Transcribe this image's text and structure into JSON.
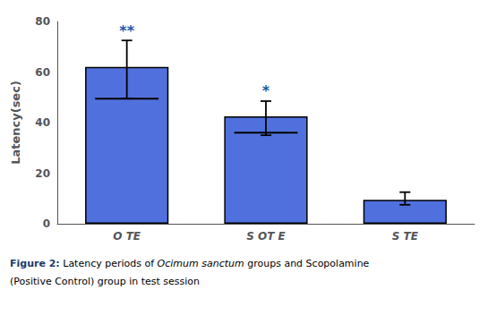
{
  "chart_data": {
    "type": "bar",
    "categories": [
      "O TE",
      "S OT E",
      "S TE"
    ],
    "values": [
      62.0,
      42.5,
      9.5
    ],
    "errors_upper": [
      10.5,
      6.0,
      3.0
    ],
    "errors_lower": [
      12.5,
      7.5,
      2.0
    ],
    "median_lines": [
      49.5,
      36.0,
      null
    ],
    "significance": [
      "**",
      "*",
      null
    ],
    "ylabel": "Latency(sec)",
    "ylim": [
      0,
      80
    ],
    "yticks": [
      0,
      20,
      40,
      60,
      80
    ],
    "grid": false,
    "caption": [
      "Figure 2:",
      " Latency periods of ",
      "Ocimum sanctum",
      " groups and Scopolamine",
      "(Positive Control) group in test session"
    ]
  }
}
